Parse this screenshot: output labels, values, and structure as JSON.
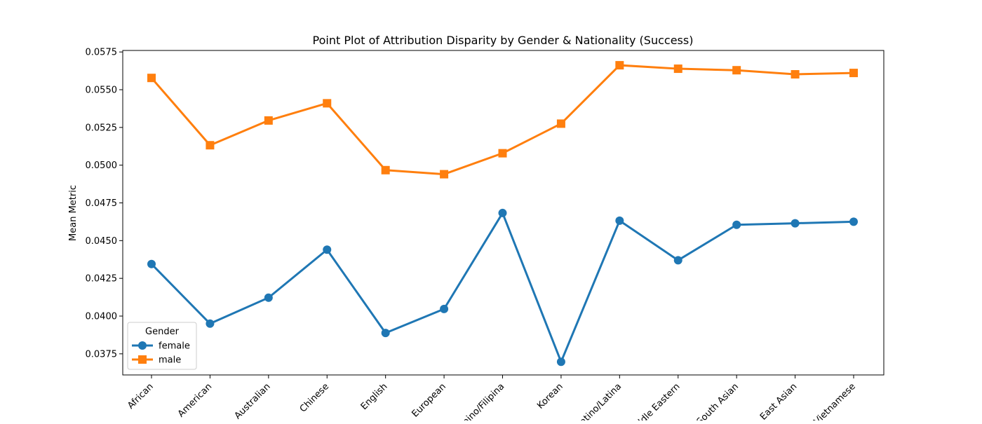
{
  "chart_data": {
    "type": "line",
    "title": "Point Plot of Attribution Disparity by Gender & Nationality (Success)",
    "xlabel": "",
    "ylabel": "Mean Metric",
    "categories": [
      "African",
      "American",
      "Australian",
      "Chinese",
      "English",
      "European",
      "Filipino/Filipina",
      "Korean",
      "Latino/Latina",
      "Middle Eastern",
      "South Asian",
      "East Asian",
      "Vietnamese"
    ],
    "ylim": [
      0.0361,
      0.0576
    ],
    "yticks": [
      "0.0375",
      "0.0400",
      "0.0425",
      "0.0450",
      "0.0475",
      "0.0500",
      "0.0525",
      "0.0550",
      "0.0575"
    ],
    "legend": {
      "title": "Gender",
      "position": "lower-left"
    },
    "grid": false,
    "series": [
      {
        "name": "female",
        "color": "#1f77b4",
        "marker": "circle",
        "values": [
          0.04345,
          0.0395,
          0.04122,
          0.0444,
          0.03888,
          0.04047,
          0.04683,
          0.03697,
          0.04632,
          0.0437,
          0.04605,
          0.04615,
          0.04625
        ]
      },
      {
        "name": "male",
        "color": "#ff7f0e",
        "marker": "square",
        "values": [
          0.05578,
          0.05132,
          0.05296,
          0.0541,
          0.04967,
          0.0494,
          0.05079,
          0.05275,
          0.05662,
          0.05639,
          0.05629,
          0.05602,
          0.05611
        ]
      }
    ]
  }
}
